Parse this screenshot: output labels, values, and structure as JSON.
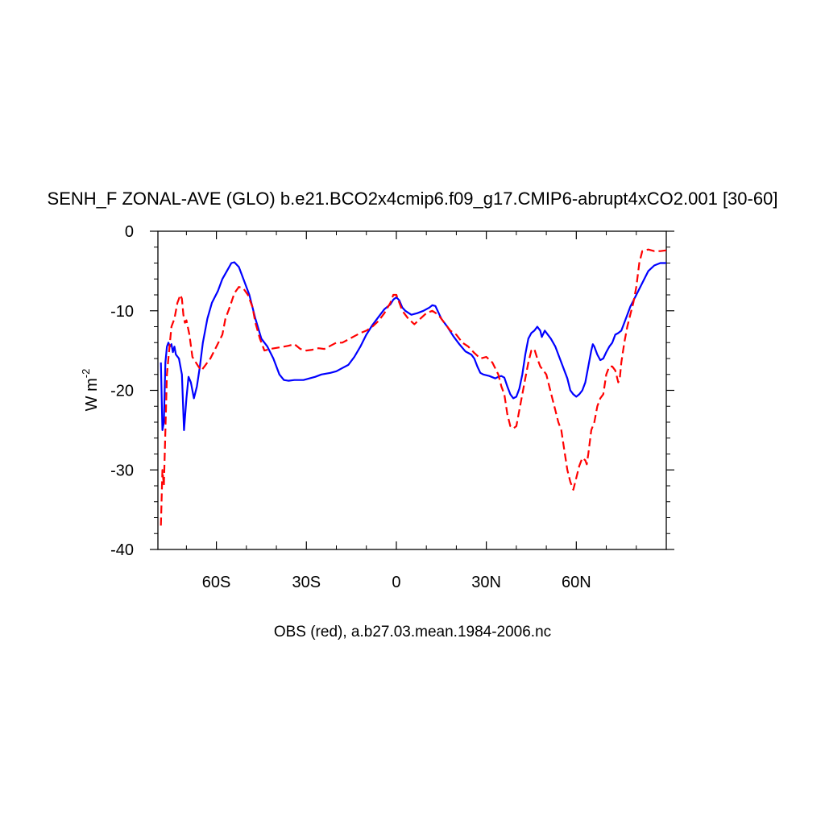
{
  "chart_data": {
    "type": "line",
    "title": "SENH_F ZONAL-AVE (GLO) b.e21.BCO2x4cmip6.f09_g17.CMIP6-abrupt4xCO2.001 [30-60]",
    "ylabel": "W m",
    "ylabel_sup": "-2",
    "caption": "OBS (red), a.b27.03.mean.1984-2006.nc",
    "xlim": [
      -79.5,
      90
    ],
    "ylim": [
      -40,
      0
    ],
    "xticks": [
      -60,
      -30,
      0,
      30,
      60
    ],
    "xtick_labels": [
      "60S",
      "30S",
      "0",
      "30N",
      "60N"
    ],
    "yticks": [
      0,
      -10,
      -20,
      -30,
      -40
    ],
    "ytick_labels": [
      "0",
      "-10",
      "-20",
      "-30",
      "-40"
    ],
    "grid": false,
    "series": [
      {
        "color": "#0000ff",
        "dash": "solid",
        "points": [
          [
            -78.5,
            -16.5
          ],
          [
            -78,
            -25
          ],
          [
            -77.5,
            -24
          ],
          [
            -77,
            -16.5
          ],
          [
            -76.5,
            -14.5
          ],
          [
            -76,
            -14
          ],
          [
            -75.5,
            -14.5
          ],
          [
            -75,
            -14.2
          ],
          [
            -74.5,
            -15.2
          ],
          [
            -74,
            -14.5
          ],
          [
            -73.5,
            -15.5
          ],
          [
            -72.5,
            -16
          ],
          [
            -71.5,
            -18
          ],
          [
            -70.8,
            -25
          ],
          [
            -70,
            -21
          ],
          [
            -69.3,
            -18.3
          ],
          [
            -68.5,
            -19
          ],
          [
            -67.5,
            -21
          ],
          [
            -66.5,
            -19.5
          ],
          [
            -65.5,
            -17
          ],
          [
            -64.5,
            -14
          ],
          [
            -63,
            -11
          ],
          [
            -61.5,
            -9
          ],
          [
            -59.5,
            -7.5
          ],
          [
            -58,
            -6
          ],
          [
            -56.5,
            -5
          ],
          [
            -55,
            -4
          ],
          [
            -54,
            -3.9
          ],
          [
            -52.5,
            -4.5
          ],
          [
            -51,
            -6
          ],
          [
            -49,
            -8
          ],
          [
            -47,
            -11
          ],
          [
            -45,
            -13.5
          ],
          [
            -43,
            -14.5
          ],
          [
            -41,
            -16
          ],
          [
            -39,
            -18
          ],
          [
            -37.5,
            -18.7
          ],
          [
            -36,
            -18.8
          ],
          [
            -34,
            -18.7
          ],
          [
            -31,
            -18.7
          ],
          [
            -29,
            -18.5
          ],
          [
            -27,
            -18.3
          ],
          [
            -25,
            -18
          ],
          [
            -22,
            -17.8
          ],
          [
            -20,
            -17.6
          ],
          [
            -18,
            -17.2
          ],
          [
            -16,
            -16.8
          ],
          [
            -14,
            -15.8
          ],
          [
            -12,
            -14.5
          ],
          [
            -10,
            -13
          ],
          [
            -8,
            -11.8
          ],
          [
            -6,
            -10.8
          ],
          [
            -4,
            -9.8
          ],
          [
            -2,
            -9.2
          ],
          [
            -1,
            -8.6
          ],
          [
            0,
            -8.3
          ],
          [
            1,
            -8.7
          ],
          [
            2,
            -9.6
          ],
          [
            3,
            -10
          ],
          [
            5,
            -10.5
          ],
          [
            7,
            -10.3
          ],
          [
            9,
            -10
          ],
          [
            11,
            -9.6
          ],
          [
            12,
            -9.3
          ],
          [
            13,
            -9.4
          ],
          [
            14,
            -10.2
          ],
          [
            15,
            -11
          ],
          [
            17,
            -12
          ],
          [
            19,
            -13.2
          ],
          [
            21,
            -14.2
          ],
          [
            23,
            -15.1
          ],
          [
            25,
            -15.5
          ],
          [
            26,
            -16
          ],
          [
            27,
            -17
          ],
          [
            28,
            -17.8
          ],
          [
            29,
            -18
          ],
          [
            31,
            -18.2
          ],
          [
            33,
            -18.5
          ],
          [
            34,
            -18.3
          ],
          [
            35,
            -18.2
          ],
          [
            36,
            -18.4
          ],
          [
            37,
            -19.5
          ],
          [
            38,
            -20.5
          ],
          [
            39,
            -21
          ],
          [
            40,
            -20.8
          ],
          [
            41,
            -19.8
          ],
          [
            42,
            -18
          ],
          [
            43,
            -15.5
          ],
          [
            44,
            -13.5
          ],
          [
            45,
            -12.8
          ],
          [
            46,
            -12.5
          ],
          [
            47,
            -12
          ],
          [
            48,
            -12.5
          ],
          [
            48.5,
            -13.3
          ],
          [
            49.5,
            -12.5
          ],
          [
            50.5,
            -13
          ],
          [
            51.5,
            -13.5
          ],
          [
            53,
            -14.5
          ],
          [
            55,
            -16.5
          ],
          [
            57,
            -18.5
          ],
          [
            58,
            -20
          ],
          [
            59,
            -20.5
          ],
          [
            60,
            -20.8
          ],
          [
            61,
            -20.5
          ],
          [
            62,
            -20
          ],
          [
            63,
            -19
          ],
          [
            64,
            -17
          ],
          [
            65,
            -15
          ],
          [
            65.5,
            -14.2
          ],
          [
            66,
            -14.5
          ],
          [
            67,
            -15.5
          ],
          [
            68,
            -16.2
          ],
          [
            69,
            -16
          ],
          [
            70,
            -15.2
          ],
          [
            71,
            -14.5
          ],
          [
            72,
            -14
          ],
          [
            73,
            -13
          ],
          [
            74,
            -12.8
          ],
          [
            75,
            -12.5
          ],
          [
            76,
            -11.5
          ],
          [
            77,
            -10.5
          ],
          [
            78,
            -9.5
          ],
          [
            80,
            -8
          ],
          [
            82,
            -6.5
          ],
          [
            84,
            -5
          ],
          [
            86,
            -4.3
          ],
          [
            88,
            -4
          ],
          [
            90,
            -4
          ]
        ]
      },
      {
        "color": "#ff0000",
        "dash": "dashed",
        "points": [
          [
            -78.5,
            -37
          ],
          [
            -78,
            -30
          ],
          [
            -77.5,
            -32
          ],
          [
            -77,
            -25
          ],
          [
            -76.5,
            -18
          ],
          [
            -76,
            -16
          ],
          [
            -75,
            -12
          ],
          [
            -74,
            -11
          ],
          [
            -73,
            -9
          ],
          [
            -72,
            -8
          ],
          [
            -71.5,
            -8.5
          ],
          [
            -71,
            -10.5
          ],
          [
            -70.5,
            -11.5
          ],
          [
            -70,
            -11.2
          ],
          [
            -69,
            -13
          ],
          [
            -68,
            -15.8
          ],
          [
            -66,
            -17
          ],
          [
            -65,
            -17.5
          ],
          [
            -64,
            -17
          ],
          [
            -62,
            -16
          ],
          [
            -60,
            -14.5
          ],
          [
            -58,
            -13
          ],
          [
            -57,
            -11
          ],
          [
            -55.5,
            -9.5
          ],
          [
            -54,
            -7.8
          ],
          [
            -52.5,
            -7
          ],
          [
            -51,
            -7.2
          ],
          [
            -49.5,
            -8
          ],
          [
            -48,
            -9.5
          ],
          [
            -47,
            -11.5
          ],
          [
            -45.5,
            -13.5
          ],
          [
            -44,
            -15
          ],
          [
            -42,
            -14.8
          ],
          [
            -39,
            -14.6
          ],
          [
            -36,
            -14.4
          ],
          [
            -34,
            -14.2
          ],
          [
            -32,
            -14.8
          ],
          [
            -30,
            -15
          ],
          [
            -28,
            -14.9
          ],
          [
            -26,
            -14.7
          ],
          [
            -24,
            -14.8
          ],
          [
            -22,
            -14.4
          ],
          [
            -20,
            -14
          ],
          [
            -18,
            -14
          ],
          [
            -16,
            -13.6
          ],
          [
            -14,
            -13.2
          ],
          [
            -12,
            -12.8
          ],
          [
            -10,
            -12.5
          ],
          [
            -8,
            -12
          ],
          [
            -6,
            -11.3
          ],
          [
            -4,
            -10.3
          ],
          [
            -2,
            -9
          ],
          [
            -1,
            -8
          ],
          [
            0,
            -8
          ],
          [
            1,
            -9
          ],
          [
            2,
            -10
          ],
          [
            4,
            -11
          ],
          [
            6,
            -11.7
          ],
          [
            8,
            -11
          ],
          [
            10,
            -10.3
          ],
          [
            12,
            -10
          ],
          [
            14,
            -10.5
          ],
          [
            16,
            -11.5
          ],
          [
            18,
            -12.5
          ],
          [
            20,
            -13
          ],
          [
            22,
            -14
          ],
          [
            24,
            -14.5
          ],
          [
            26,
            -15.3
          ],
          [
            28,
            -16
          ],
          [
            30,
            -15.8
          ],
          [
            32,
            -16.5
          ],
          [
            34,
            -18
          ],
          [
            35,
            -19.5
          ],
          [
            36,
            -20.5
          ],
          [
            37,
            -23
          ],
          [
            38,
            -24.5
          ],
          [
            39,
            -24.8
          ],
          [
            40,
            -24.5
          ],
          [
            41,
            -22.5
          ],
          [
            42,
            -20.5
          ],
          [
            43,
            -18.5
          ],
          [
            44,
            -16.5
          ],
          [
            45,
            -15
          ],
          [
            46,
            -14.8
          ],
          [
            47,
            -16
          ],
          [
            48,
            -17
          ],
          [
            49,
            -17.5
          ],
          [
            50,
            -18
          ],
          [
            51,
            -19.5
          ],
          [
            52,
            -21
          ],
          [
            53,
            -22.5
          ],
          [
            54,
            -24
          ],
          [
            55,
            -25
          ],
          [
            56,
            -27.5
          ],
          [
            57,
            -30
          ],
          [
            58,
            -31.5
          ],
          [
            59,
            -32.5
          ],
          [
            60,
            -31
          ],
          [
            61,
            -29.5
          ],
          [
            62,
            -28.5
          ],
          [
            63,
            -28.8
          ],
          [
            63.5,
            -29.3
          ],
          [
            64,
            -28
          ],
          [
            65,
            -25
          ],
          [
            66,
            -24
          ],
          [
            67,
            -22
          ],
          [
            68,
            -21
          ],
          [
            69,
            -20.5
          ],
          [
            70,
            -18
          ],
          [
            71,
            -17
          ],
          [
            72,
            -17
          ],
          [
            73,
            -17.5
          ],
          [
            74,
            -19
          ],
          [
            74.5,
            -18.5
          ],
          [
            75,
            -16.5
          ],
          [
            76,
            -14
          ],
          [
            77,
            -12
          ],
          [
            78,
            -10.5
          ],
          [
            79,
            -9
          ],
          [
            80,
            -7
          ],
          [
            81,
            -4
          ],
          [
            82,
            -2.5
          ],
          [
            84,
            -2.3
          ],
          [
            86,
            -2.5
          ],
          [
            88,
            -2.5
          ],
          [
            90,
            -2.4
          ]
        ]
      }
    ]
  }
}
